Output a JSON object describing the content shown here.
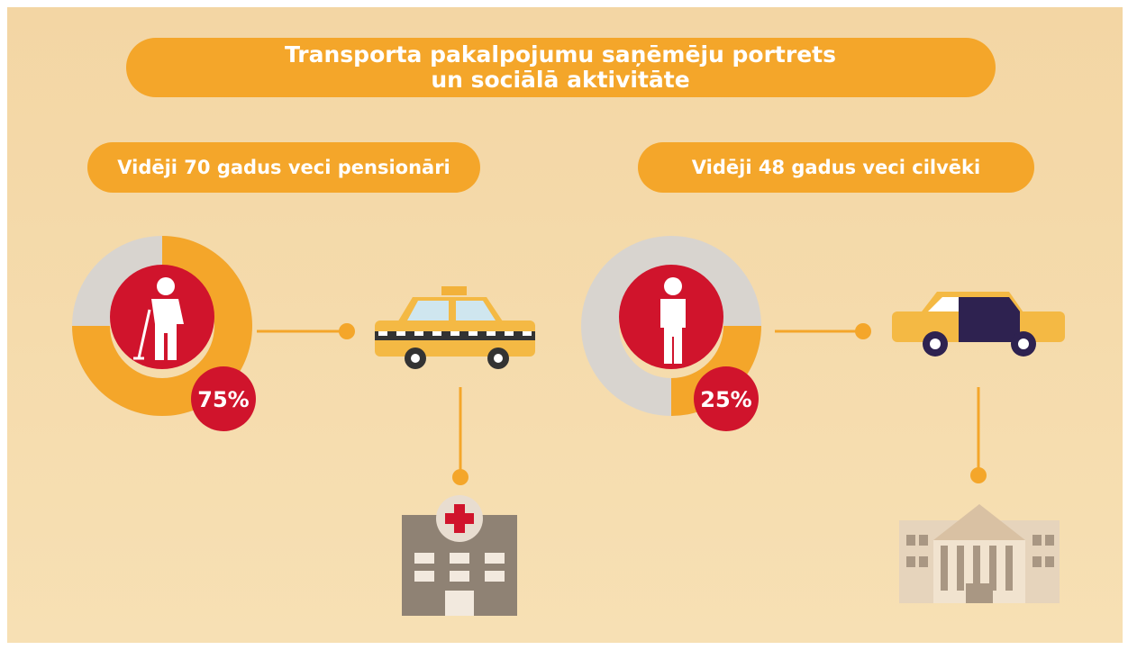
{
  "title": [
    "Transporta pakalpojumu saņēmēju portrets",
    "un sociālā aktivitāte"
  ],
  "panels": [
    {
      "heading": "Vidēji 70 gadus veci pensionāri",
      "value": 75,
      "value_label": "75%"
    },
    {
      "heading": "Vidēji 48 gadus veci cilvēki",
      "value": 25,
      "value_label": "25%"
    }
  ]
}
